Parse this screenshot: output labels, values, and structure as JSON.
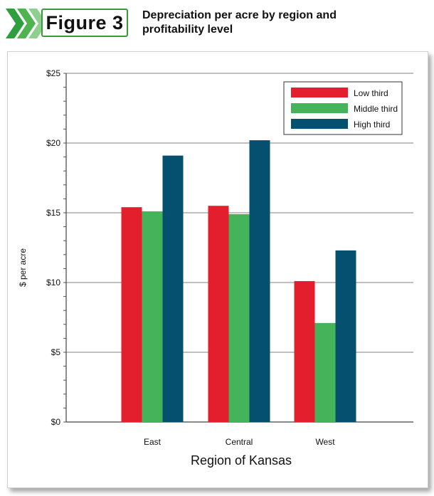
{
  "figure": {
    "label": "Figure 3",
    "title": "Depreciation per acre by region and profitability level"
  },
  "colors": {
    "badge_border": "#3a9a3a",
    "chevron_dark": "#2e9e3e",
    "chevron_light": "#8fd08f"
  },
  "chart_data": {
    "type": "bar",
    "title": "Depreciation per acre by region and profitability level",
    "xlabel": "Region of Kansas",
    "ylabel": "$ per acre",
    "categories": [
      "East",
      "Central",
      "West"
    ],
    "series": [
      {
        "name": "Low third",
        "color": "#e41f2d",
        "values": [
          15.4,
          15.5,
          10.1
        ]
      },
      {
        "name": "Middle third",
        "color": "#44b35a",
        "values": [
          15.1,
          14.9,
          7.1
        ]
      },
      {
        "name": "High third",
        "color": "#05506e",
        "values": [
          19.1,
          20.2,
          12.3
        ]
      }
    ],
    "ylim": [
      0,
      25
    ],
    "yticks": [
      0,
      5,
      10,
      15,
      20,
      25
    ],
    "ytick_labels": [
      "$0",
      "$5",
      "$10",
      "$15",
      "$20",
      "$25"
    ],
    "grid": true,
    "legend_position": "top-right"
  }
}
